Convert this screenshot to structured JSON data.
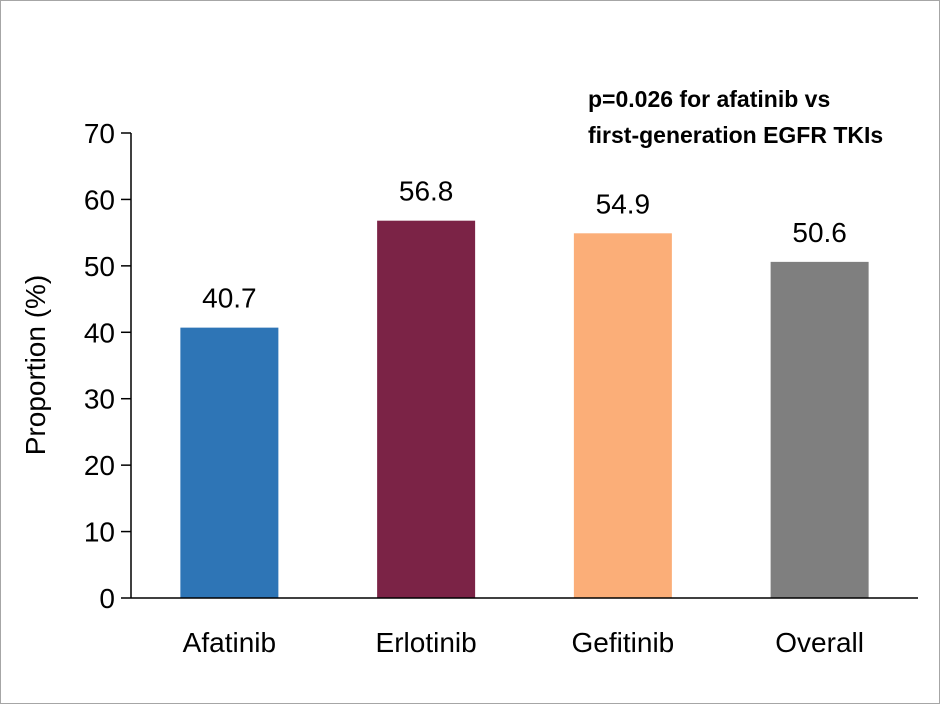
{
  "chart_data": {
    "type": "bar",
    "categories": [
      "Afatinib",
      "Erlotinib",
      "Gefitinib",
      "Overall"
    ],
    "values": [
      40.7,
      56.8,
      54.9,
      50.6
    ],
    "data_labels": [
      "40.7",
      "56.8",
      "54.9",
      "50.6"
    ],
    "colors": [
      "#2e75b6",
      "#7b2346",
      "#fbae78",
      "#7f7f7f"
    ],
    "title": "",
    "xlabel": "",
    "ylabel": "Proportion (%)",
    "ylim": [
      0,
      70
    ],
    "yticks": [
      0,
      10,
      20,
      30,
      40,
      50,
      60,
      70
    ],
    "ytick_labels": [
      "0",
      "10",
      "20",
      "30",
      "40",
      "50",
      "60",
      "70"
    ],
    "grid": false,
    "annotation": {
      "line1": "p=0.026 for afatinib vs",
      "line2": "first-generation EGFR TKIs"
    }
  }
}
